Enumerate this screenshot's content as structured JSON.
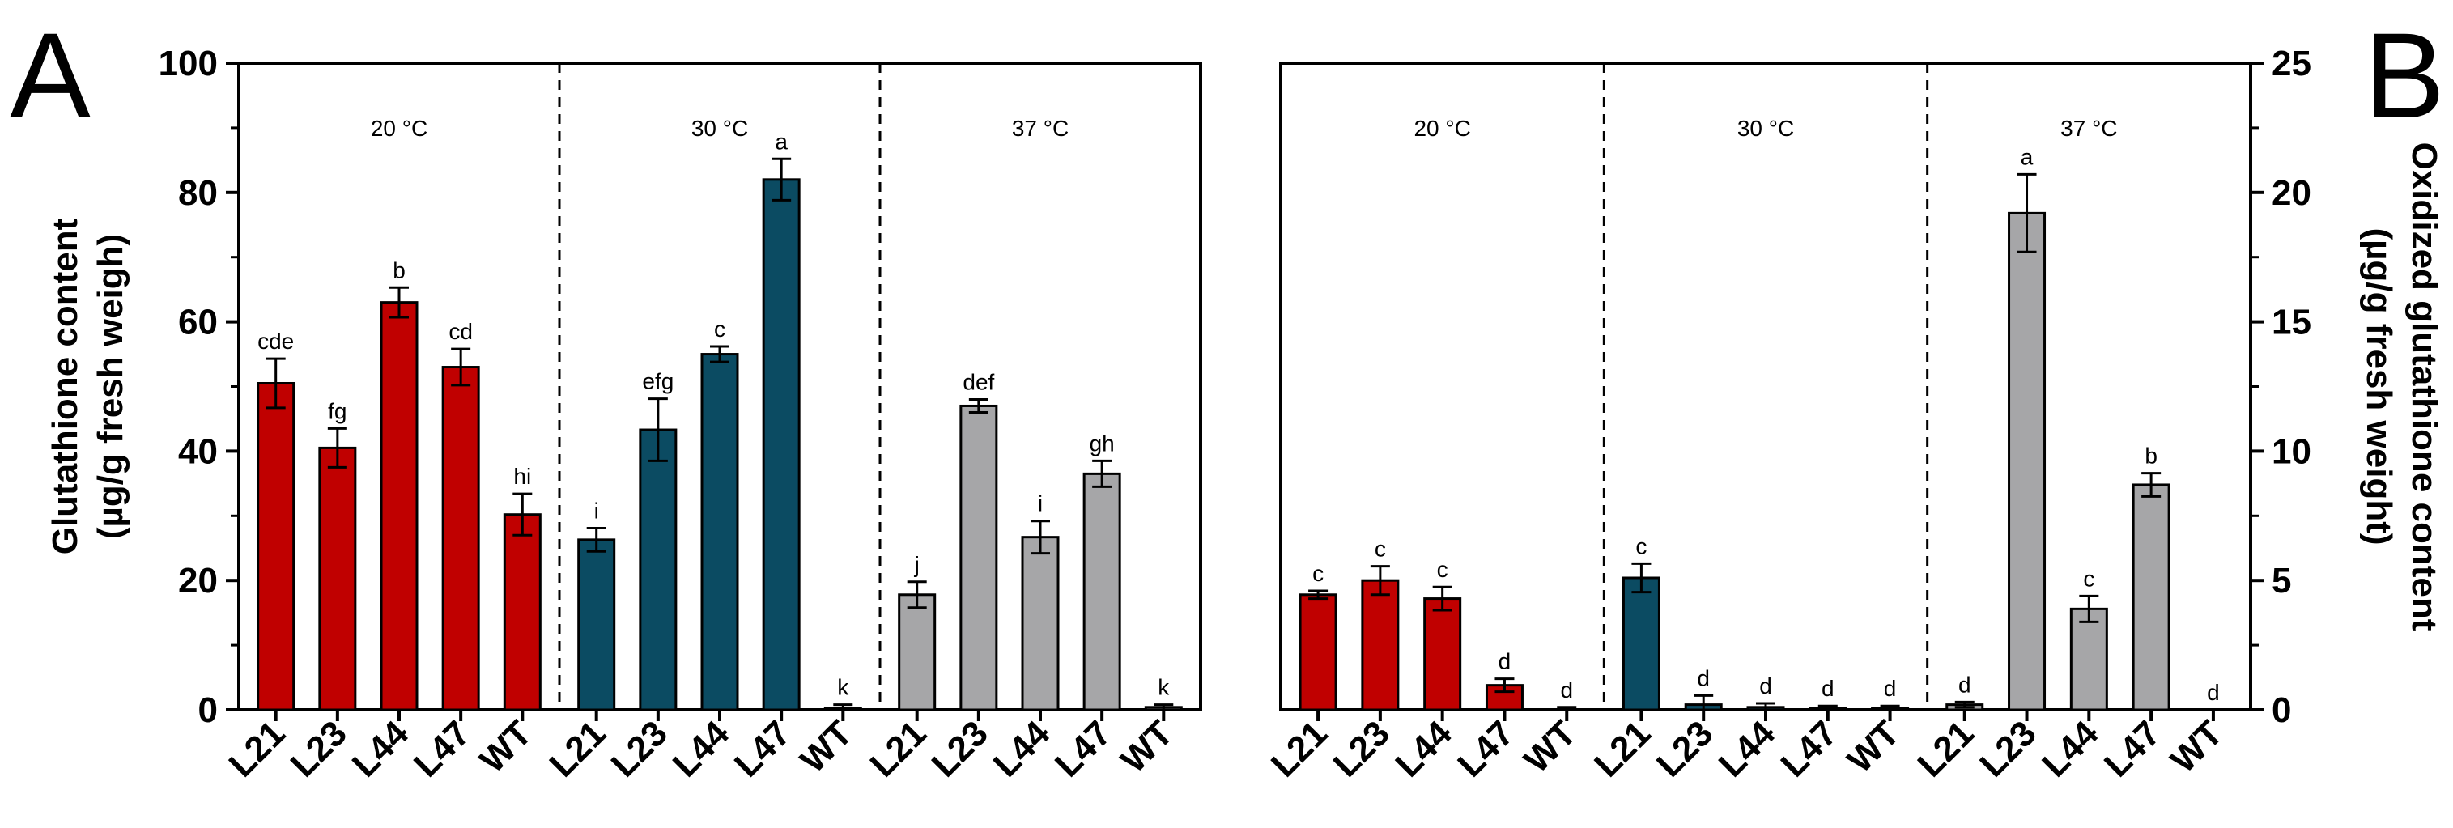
{
  "panel_labels": {
    "a": "A",
    "b": "B"
  },
  "colors": {
    "20 °C": "#c00000",
    "30 °C": "#0b4b62",
    "37 °C": "#a6a6a8"
  },
  "chart_data": [
    {
      "type": "bar",
      "panel": "A",
      "ylabel_line1": "Glutathione content",
      "ylabel_line2": "(µg/g fresh weigh)",
      "ylim": [
        0,
        100
      ],
      "yticks": [
        0,
        20,
        40,
        60,
        80,
        100
      ],
      "y_axis_side": "left",
      "categories": [
        "L21",
        "L23",
        "L44",
        "L47",
        "WT"
      ],
      "groups": [
        {
          "name": "20 °C",
          "values": [
            50.5,
            40.5,
            63,
            53,
            30.2
          ],
          "errors": [
            3.8,
            3,
            2.3,
            2.8,
            3.2
          ],
          "letters": [
            "cde",
            "fg",
            "b",
            "cd",
            "hi"
          ]
        },
        {
          "name": "30 °C",
          "values": [
            26.3,
            43.3,
            55,
            82,
            0.3
          ],
          "errors": [
            1.8,
            4.8,
            1.2,
            3.2,
            0.5
          ],
          "letters": [
            "i",
            "efg",
            "c",
            "a",
            "k"
          ]
        },
        {
          "name": "37 °C",
          "values": [
            17.8,
            47,
            26.7,
            36.5,
            0.4
          ],
          "errors": [
            2,
            1,
            2.5,
            2,
            0.4
          ],
          "letters": [
            "j",
            "def",
            "i",
            "gh",
            "k"
          ]
        }
      ]
    },
    {
      "type": "bar",
      "panel": "B",
      "ylabel_line1": "Oxidized glutathione content",
      "ylabel_line2": "(µg/g fresh weight)",
      "ylim": [
        0,
        25
      ],
      "yticks": [
        0,
        5,
        10,
        15,
        20,
        25
      ],
      "y_axis_side": "right",
      "categories": [
        "L21",
        "L23",
        "L44",
        "L47",
        "WT"
      ],
      "groups": [
        {
          "name": "20 °C",
          "values": [
            4.45,
            5,
            4.3,
            0.95,
            0
          ],
          "errors": [
            0.15,
            0.55,
            0.45,
            0.25,
            0.1
          ],
          "letters": [
            "c",
            "c",
            "c",
            "d",
            "d"
          ]
        },
        {
          "name": "30 °C",
          "values": [
            5.1,
            0.2,
            0.1,
            0.05,
            0.05
          ],
          "errors": [
            0.55,
            0.35,
            0.15,
            0.1,
            0.1
          ],
          "letters": [
            "c",
            "d",
            "d",
            "d",
            "d"
          ]
        },
        {
          "name": "37 °C",
          "values": [
            0.2,
            19.2,
            3.9,
            8.7,
            0
          ],
          "errors": [
            0.1,
            1.5,
            0.5,
            0.45,
            0
          ],
          "letters": [
            "d",
            "a",
            "c",
            "b",
            "d"
          ]
        }
      ]
    }
  ]
}
